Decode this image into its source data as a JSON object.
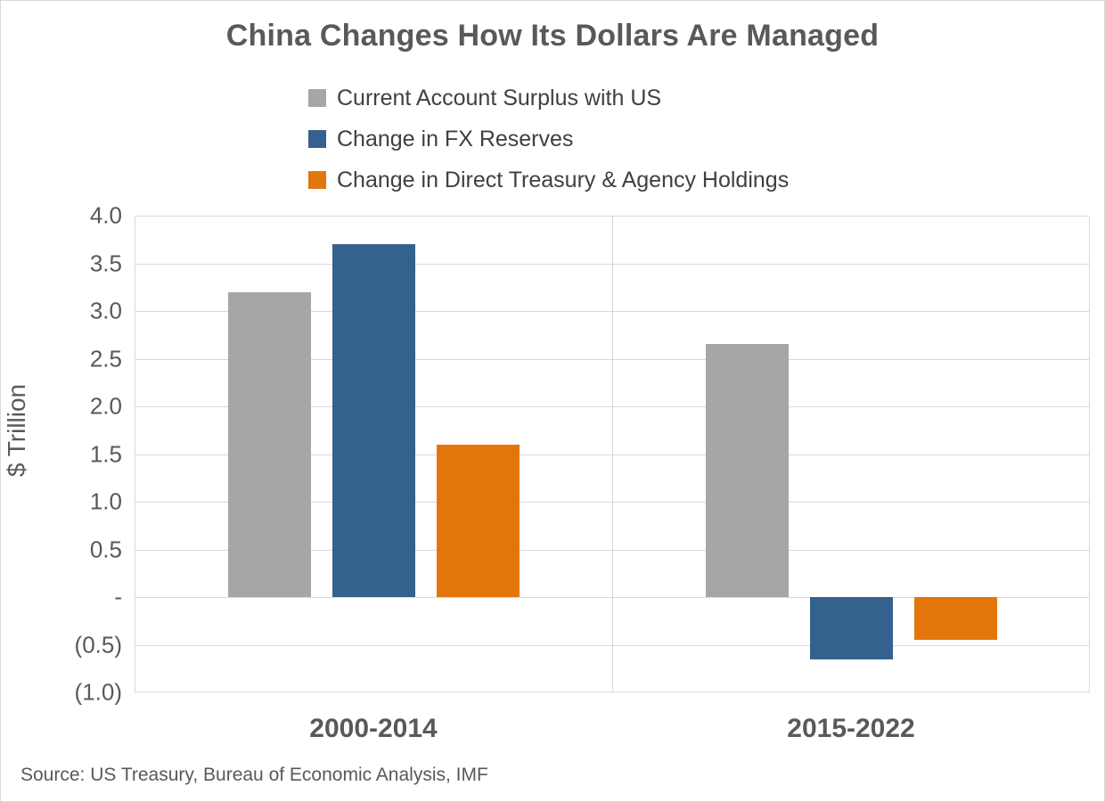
{
  "title": "China Changes How Its Dollars Are Managed",
  "source": "Source: US Treasury, Bureau of Economic Analysis, IMF",
  "legend": [
    {
      "label": "Current Account Surplus with US",
      "color": "#a6a6a6"
    },
    {
      "label": "Change in FX Reserves",
      "color": "#35618f"
    },
    {
      "label": "Change in Direct Treasury & Agency Holdings",
      "color": "#e2760d"
    }
  ],
  "chart_data": {
    "type": "bar",
    "title": "China Changes How Its Dollars Are Managed",
    "categories": [
      "2000-2014",
      "2015-2022"
    ],
    "series": [
      {
        "name": "Current Account Surplus with US",
        "color": "#a6a6a6",
        "values": [
          3.2,
          2.65
        ]
      },
      {
        "name": "Change in FX Reserves",
        "color": "#35618f",
        "values": [
          3.7,
          -0.65
        ]
      },
      {
        "name": "Change in Direct Treasury & Agency Holdings",
        "color": "#e2760d",
        "values": [
          1.6,
          -0.45
        ]
      }
    ],
    "xlabel": "",
    "ylabel": "$ Trillion",
    "ylim": [
      -1.0,
      4.0
    ],
    "ytick_step": 0.5,
    "ytick_labels": [
      "4.0",
      "3.5",
      "3.0",
      "2.5",
      "2.0",
      "1.5",
      "1.0",
      "0.5",
      "-",
      "(0.5)",
      "(1.0)"
    ],
    "zero_label": "-",
    "negative_format": "parentheses",
    "grid": true,
    "legend_position": "top-center-left-aligned",
    "gridline_color": "#d9d9d9",
    "axis_text_color": "#595959"
  }
}
